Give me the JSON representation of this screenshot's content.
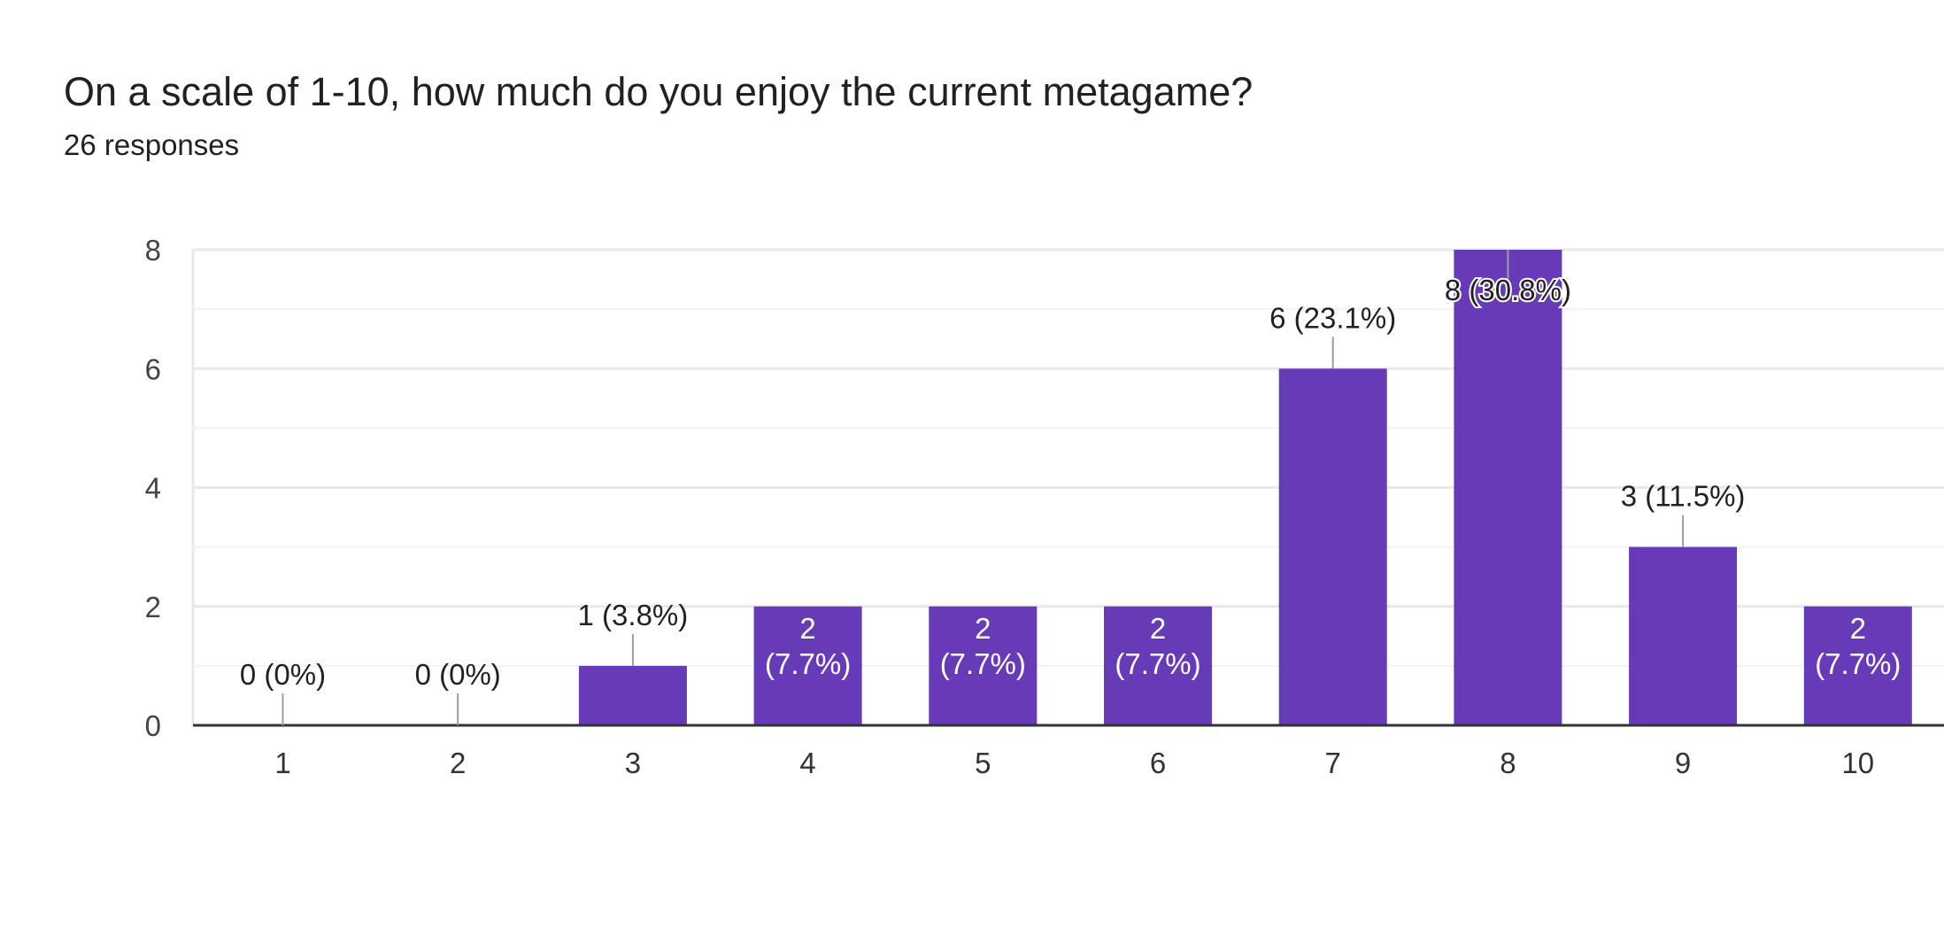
{
  "question": {
    "title": "On a scale of 1-10, how much do you enjoy the current metagame?",
    "responses": "26 responses"
  },
  "colors": {
    "bar": "#673ab7",
    "grid_major": "#e8e8e8",
    "grid_minor": "#f3f3f3",
    "axis": "#333333",
    "label_dark": "#202124",
    "label_light": "#ffffff",
    "leader": "#9e9e9e"
  },
  "chart_data": {
    "type": "bar",
    "categories": [
      "1",
      "2",
      "3",
      "4",
      "5",
      "6",
      "7",
      "8",
      "9",
      "10"
    ],
    "values": [
      0,
      0,
      1,
      2,
      2,
      2,
      6,
      8,
      3,
      2
    ],
    "labels": [
      "0 (0%)",
      "0 (0%)",
      "1 (3.8%)",
      "2 (7.7%)",
      "2 (7.7%)",
      "2 (7.7%)",
      "6 (23.1%)",
      "8 (30.8%)",
      "3 (11.5%)",
      "2 (7.7%)"
    ],
    "ylim": [
      0,
      8
    ],
    "yticks": [
      "0",
      "2",
      "4",
      "6",
      "8"
    ],
    "grid": true,
    "title": "",
    "xlabel": "",
    "ylabel": ""
  }
}
